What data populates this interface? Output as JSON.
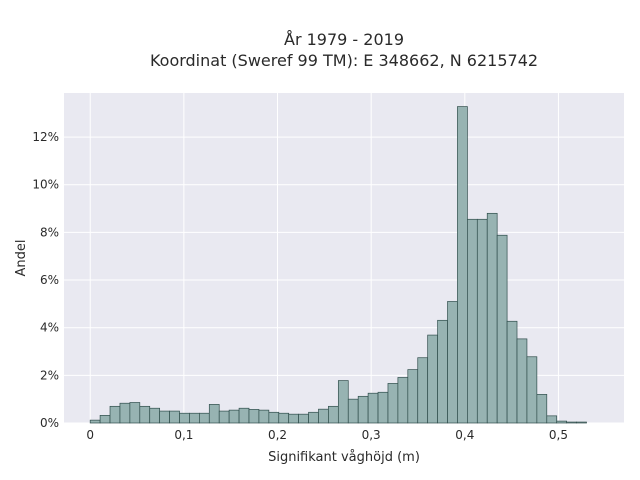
{
  "chart_data": {
    "type": "bar",
    "title_lines": [
      "År 1979 - 2019",
      "Koordinat (Sweref 99 TM): E 348662, N 6215742"
    ],
    "xlabel": "Signifikant våghöjd (m)",
    "ylabel": "Andel",
    "x_ticks": [
      {
        "value": 0,
        "label": "0"
      },
      {
        "value": 0.1,
        "label": "0,1"
      },
      {
        "value": 0.2,
        "label": "0,2"
      },
      {
        "value": 0.3,
        "label": "0,3"
      },
      {
        "value": 0.4,
        "label": "0,4"
      },
      {
        "value": 0.5,
        "label": "0,5"
      }
    ],
    "y_ticks": [
      {
        "value": 0,
        "label": "0%"
      },
      {
        "value": 2,
        "label": "2%"
      },
      {
        "value": 4,
        "label": "4%"
      },
      {
        "value": 6,
        "label": "6%"
      },
      {
        "value": 8,
        "label": "8%"
      },
      {
        "value": 10,
        "label": "10%"
      },
      {
        "value": 12,
        "label": "12%"
      }
    ],
    "xlim": [
      -0.028,
      0.57
    ],
    "ylim": [
      0,
      13.85
    ],
    "bin_width": 0.0106,
    "bin_start": -5e-05,
    "values": [
      0.12,
      0.32,
      0.7,
      0.83,
      0.86,
      0.7,
      0.62,
      0.5,
      0.5,
      0.41,
      0.41,
      0.41,
      0.78,
      0.5,
      0.54,
      0.62,
      0.57,
      0.54,
      0.45,
      0.41,
      0.37,
      0.37,
      0.45,
      0.58,
      0.7,
      1.78,
      1.0,
      1.12,
      1.25,
      1.29,
      1.66,
      1.91,
      2.24,
      2.74,
      3.69,
      4.31,
      5.1,
      13.28,
      8.55,
      8.55,
      8.8,
      7.88,
      4.27,
      3.53,
      2.78,
      1.2,
      0.3,
      0.08,
      0.04,
      0.04
    ],
    "bar_color": "#97b3b2",
    "bar_edge_color": "#2f4d4b",
    "plot_bg": "#e9e9f1",
    "grid": true
  }
}
